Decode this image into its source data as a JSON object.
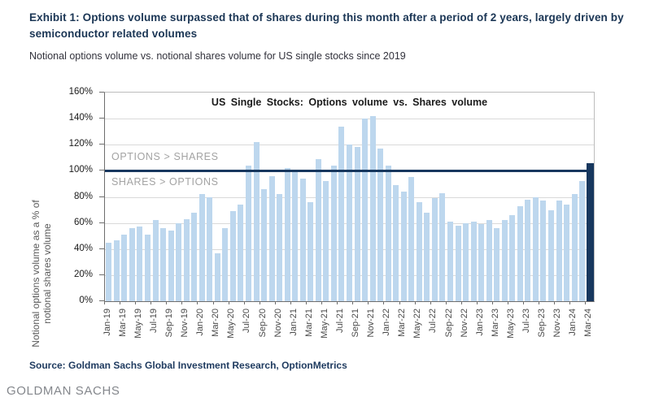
{
  "header": {
    "exhibit_title": "Exhibit 1: Options volume surpassed that of shares during this month after a period of 2 years, largely driven by semiconductor related volumes",
    "subtitle": "Notional options volume vs. notional shares volume for US single stocks since 2019"
  },
  "chart_data": {
    "type": "bar",
    "title": "US Single Stocks: Options volume vs. Shares volume",
    "ylabel": "Notional options volume as a % of notional shares volume",
    "ylabel_lines": [
      "Notional options volume as a % of",
      "notional shares volume"
    ],
    "ylim": [
      0,
      160
    ],
    "ytick_step": 20,
    "yticks": [
      "0%",
      "20%",
      "40%",
      "60%",
      "80%",
      "100%",
      "120%",
      "140%",
      "160%"
    ],
    "grid": "horizontal",
    "xtick_every": 2,
    "categories": [
      "Jan-19",
      "Feb-19",
      "Mar-19",
      "Apr-19",
      "May-19",
      "Jun-19",
      "Jul-19",
      "Aug-19",
      "Sep-19",
      "Oct-19",
      "Nov-19",
      "Dec-19",
      "Jan-20",
      "Feb-20",
      "Mar-20",
      "Apr-20",
      "May-20",
      "Jun-20",
      "Jul-20",
      "Aug-20",
      "Sep-20",
      "Oct-20",
      "Nov-20",
      "Dec-20",
      "Jan-21",
      "Feb-21",
      "Mar-21",
      "Apr-21",
      "May-21",
      "Jun-21",
      "Jul-21",
      "Aug-21",
      "Sep-21",
      "Oct-21",
      "Nov-21",
      "Dec-21",
      "Jan-22",
      "Feb-22",
      "Mar-22",
      "Apr-22",
      "May-22",
      "Jun-22",
      "Jul-22",
      "Aug-22",
      "Sep-22",
      "Oct-22",
      "Nov-22",
      "Dec-22",
      "Jan-23",
      "Feb-23",
      "Mar-23",
      "Apr-23",
      "May-23",
      "Jun-23",
      "Jul-23",
      "Aug-23",
      "Sep-23",
      "Oct-23",
      "Nov-23",
      "Dec-23",
      "Jan-24",
      "Feb-24",
      "Mar-24"
    ],
    "values": [
      45,
      47,
      51,
      56,
      57,
      51,
      62,
      56,
      54,
      60,
      63,
      68,
      82,
      80,
      37,
      56,
      69,
      74,
      104,
      122,
      86,
      96,
      82,
      102,
      99,
      94,
      76,
      109,
      92,
      104,
      134,
      120,
      118,
      140,
      142,
      117,
      104,
      89,
      84,
      95,
      76,
      68,
      79,
      83,
      61,
      58,
      60,
      61,
      59,
      62,
      56,
      62,
      66,
      73,
      78,
      80,
      77,
      70,
      77,
      74,
      82,
      92,
      106
    ],
    "unit": "%",
    "highlight_index": 62,
    "highlight_category": "Mar-24",
    "reference_line": {
      "value": 100,
      "label_above": "OPTIONS > SHARES",
      "label_below": "SHARES > OPTIONS"
    },
    "colors": {
      "bar": "#BDD7EE",
      "highlight_bar": "#17375E",
      "reference_line": "#17375E",
      "gridline": "#D9D9D9",
      "annotation_text": "#A3A3A3"
    },
    "legend": "none"
  },
  "footer": {
    "source": "Source: Goldman Sachs Global Investment Research, OptionMetrics",
    "brand": "GOLDMAN SACHS"
  }
}
